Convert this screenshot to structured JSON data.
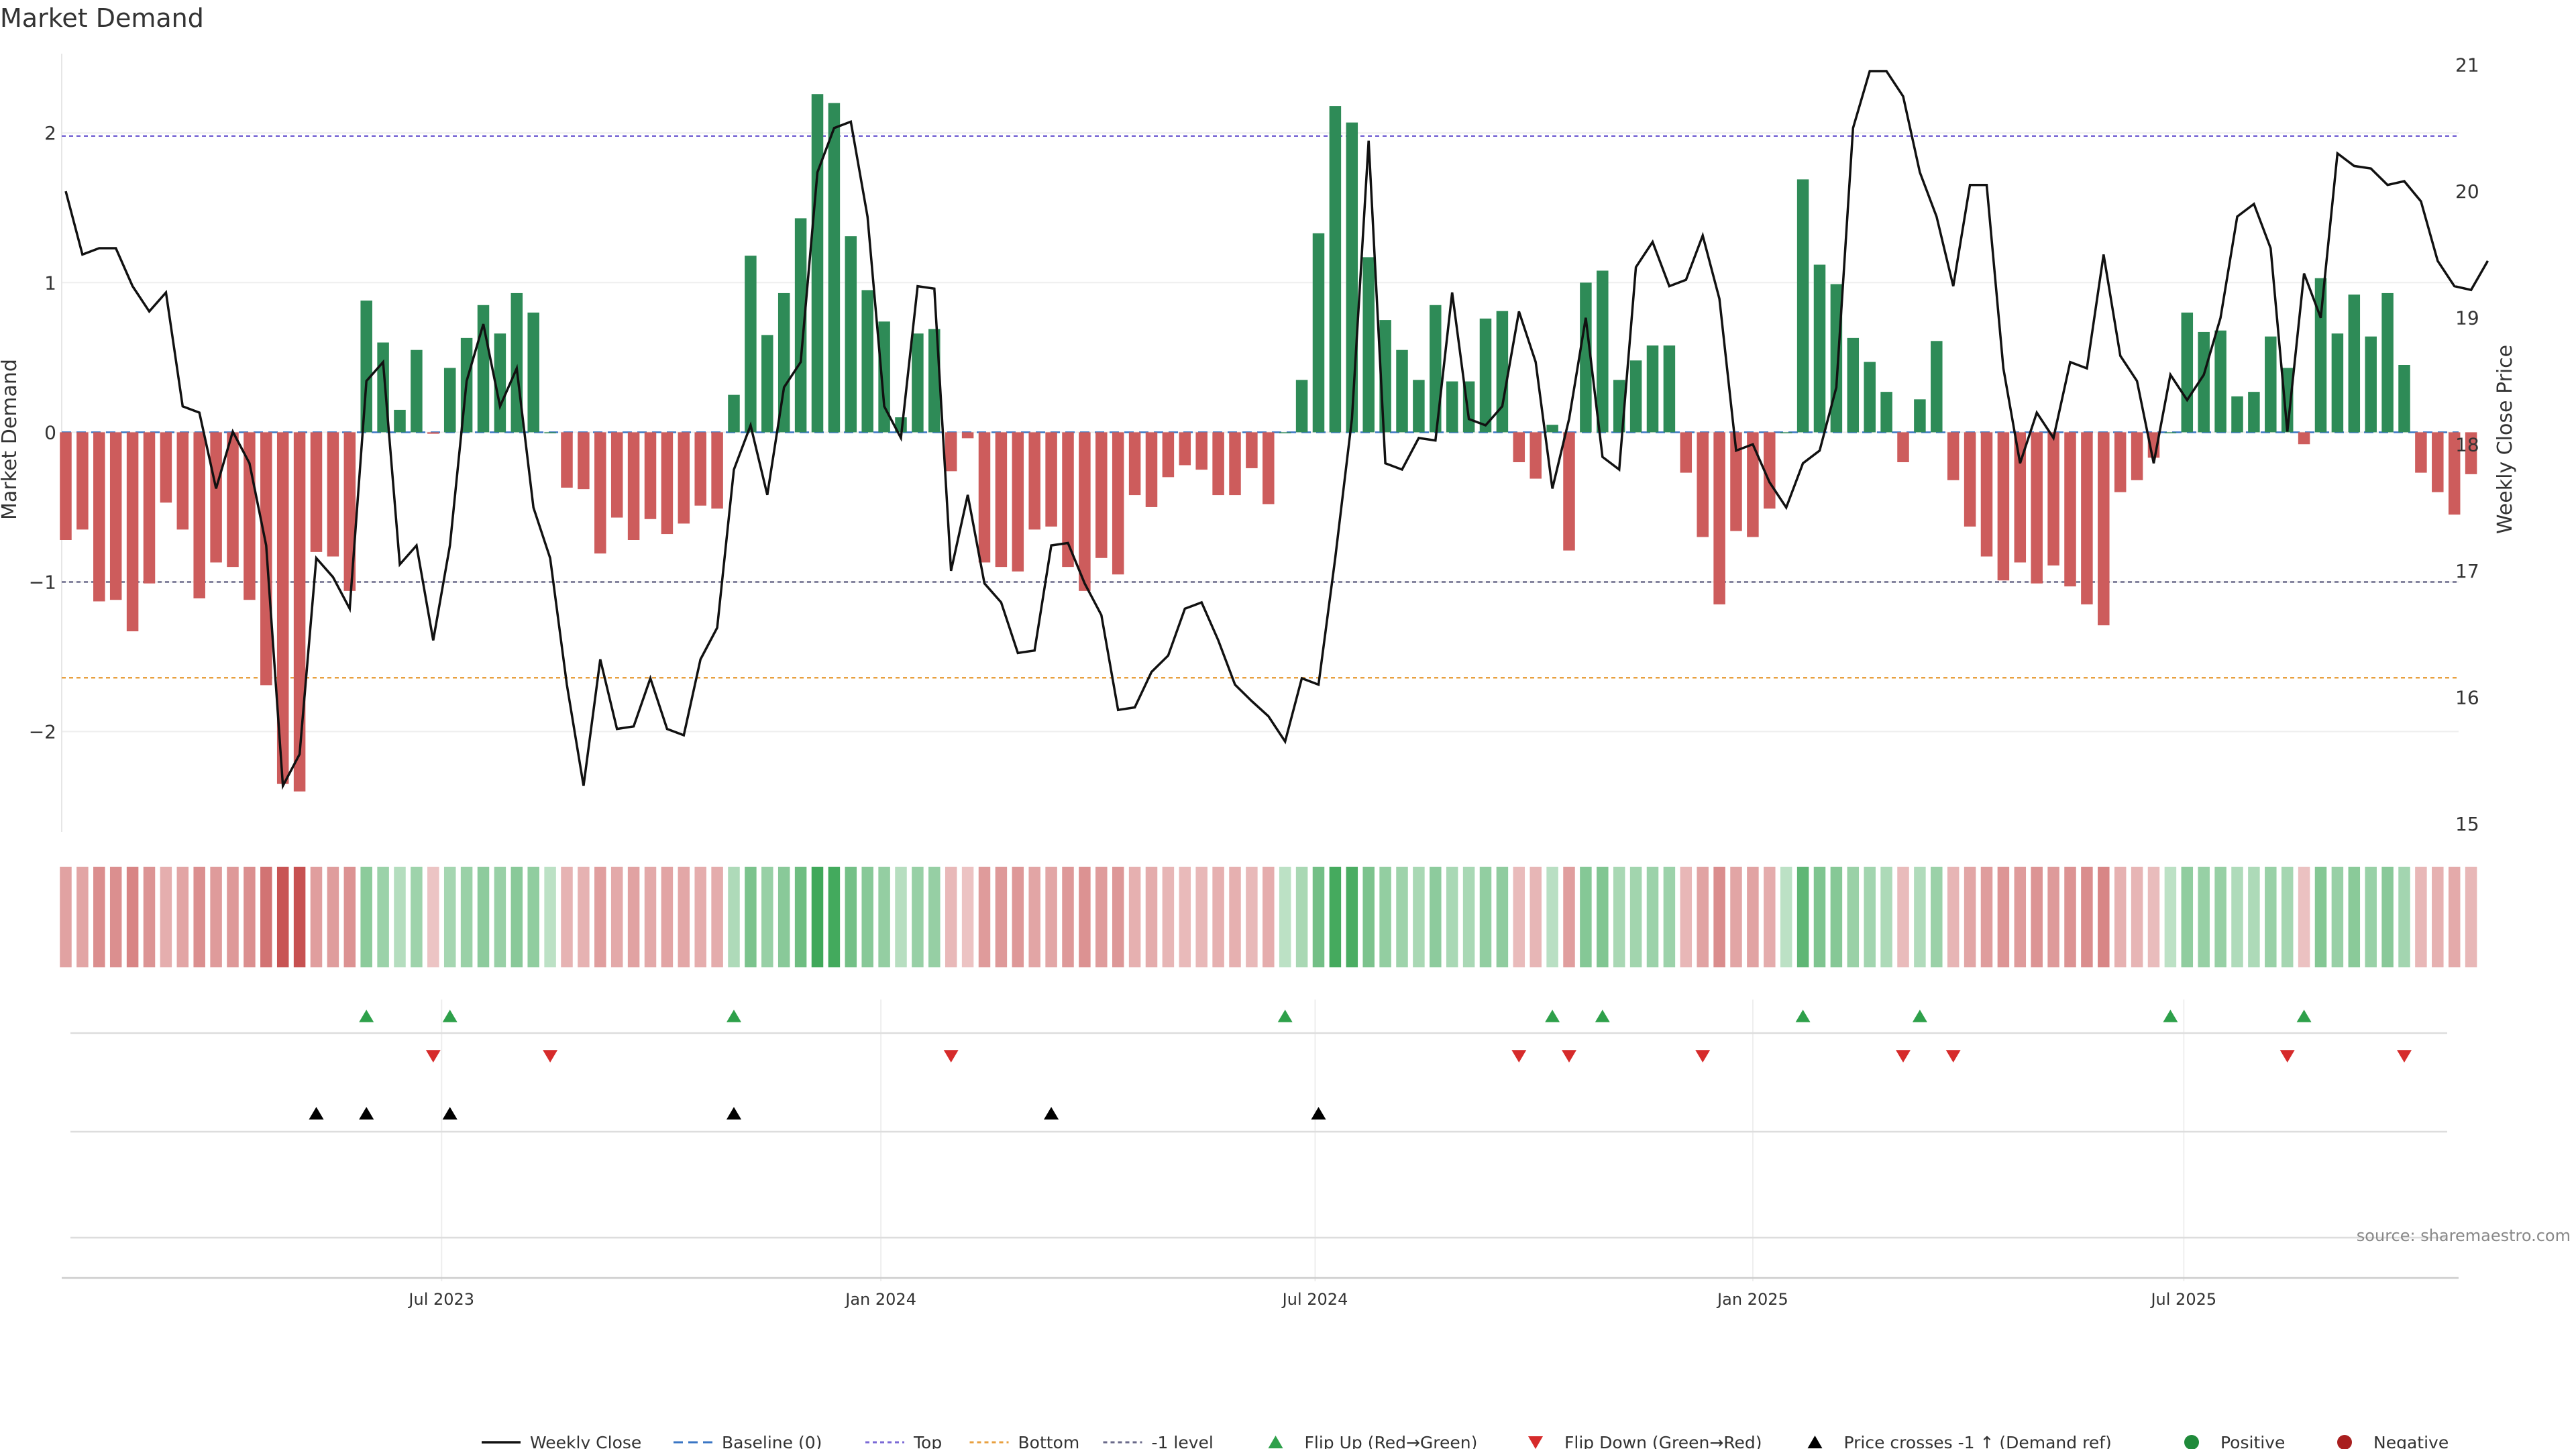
{
  "chart_data": {
    "type": "bar",
    "title": "Market Demand",
    "ylabel": "Market Demand",
    "y2label": "Weekly Close Price",
    "ylim": [
      -2.67,
      2.53
    ],
    "y_ticks": [
      -2,
      -1,
      0,
      1,
      2
    ],
    "y_tick_labels": [
      "−2",
      "−1",
      "0",
      "1",
      "2"
    ],
    "y2lim": [
      15,
      21.3
    ],
    "y2_ticks": [
      15,
      16,
      17,
      18,
      19,
      20,
      21
    ],
    "y2_tick_labels": [
      "15",
      "16",
      "17",
      "18",
      "19",
      "20",
      "21"
    ],
    "x_tick_labels": [
      "Jul 2023",
      "Jan 2024",
      "Jul 2024",
      "Jan 2025",
      "Jul 2025"
    ],
    "x_tick_weeks": [
      22.5,
      48.8,
      74.8,
      101.0,
      126.8
    ],
    "reference_lines": [
      {
        "name": "Top",
        "value": 1.98,
        "color": "#7b6ad6"
      },
      {
        "name": "Bottom",
        "value": -1.64,
        "color": "#e8a040"
      },
      {
        "name": "-1 level",
        "value": -1.0,
        "color": "#6a6a8a"
      },
      {
        "name": "Baseline (0)",
        "value": 0,
        "color": "#3a76c4"
      }
    ],
    "demand": [
      -0.72,
      -0.65,
      -1.13,
      -1.12,
      -1.33,
      -1.01,
      -0.47,
      -0.65,
      -1.11,
      -0.87,
      -0.9,
      -1.12,
      -1.69,
      -2.35,
      -2.4,
      -0.8,
      -0.83,
      -1.06,
      0.88,
      0.6,
      0.15,
      0.55,
      -0.01,
      0.43,
      0.63,
      0.85,
      0.66,
      0.93,
      0.8,
      0.0,
      -0.37,
      -0.38,
      -0.81,
      -0.57,
      -0.72,
      -0.58,
      -0.68,
      -0.61,
      -0.49,
      -0.51,
      0.25,
      1.18,
      0.65,
      0.93,
      1.43,
      2.26,
      2.2,
      1.31,
      0.95,
      0.74,
      0.1,
      0.66,
      0.69,
      -0.26,
      -0.04,
      -0.87,
      -0.9,
      -0.93,
      -0.65,
      -0.63,
      -0.9,
      -1.06,
      -0.84,
      -0.95,
      -0.42,
      -0.5,
      -0.3,
      -0.22,
      -0.25,
      -0.42,
      -0.42,
      -0.24,
      -0.48,
      0.0,
      0.35,
      1.33,
      2.18,
      2.07,
      1.17,
      0.75,
      0.55,
      0.35,
      0.85,
      0.34,
      0.34,
      0.76,
      0.81,
      -0.2,
      -0.31,
      0.05,
      -0.79,
      1.0,
      1.08,
      0.35,
      0.48,
      0.58,
      0.58,
      -0.27,
      -0.7,
      -1.15,
      -0.66,
      -0.7,
      -0.51,
      0.0,
      1.69,
      1.12,
      0.99,
      0.63,
      0.47,
      0.27,
      -0.2,
      0.22,
      0.61,
      -0.32,
      -0.63,
      -0.83,
      -0.99,
      -0.87,
      -1.01,
      -0.89,
      -1.03,
      -1.15,
      -1.29,
      -0.4,
      -0.32,
      -0.17,
      0.0,
      0.8,
      0.67,
      0.68,
      0.24,
      0.27,
      0.64,
      0.43,
      -0.08,
      1.03,
      0.66,
      0.92,
      0.64,
      0.93,
      0.45,
      -0.27,
      -0.4,
      -0.55,
      -0.28
    ],
    "weekly_close": [
      20.0,
      19.5,
      19.55,
      19.55,
      19.25,
      19.05,
      19.2,
      18.3,
      18.25,
      17.65,
      18.1,
      17.85,
      17.2,
      15.3,
      15.55,
      17.1,
      16.95,
      16.7,
      18.5,
      18.65,
      17.05,
      17.2,
      16.45,
      17.2,
      18.5,
      18.95,
      18.3,
      18.6,
      17.5,
      17.1,
      16.1,
      15.3,
      16.3,
      15.75,
      15.77,
      16.15,
      15.75,
      15.7,
      16.3,
      16.55,
      17.8,
      18.15,
      17.6,
      18.45,
      18.65,
      20.15,
      20.5,
      20.55,
      19.8,
      18.3,
      18.05,
      19.25,
      19.23,
      17.0,
      17.6,
      16.9,
      16.75,
      16.35,
      16.37,
      17.2,
      17.22,
      16.9,
      16.65,
      15.9,
      15.92,
      16.2,
      16.33,
      16.7,
      16.75,
      16.45,
      16.1,
      15.97,
      15.85,
      15.65,
      16.15,
      16.1,
      17.1,
      18.2,
      20.4,
      17.85,
      17.8,
      18.05,
      18.03,
      19.2,
      18.2,
      18.15,
      18.3,
      19.05,
      18.65,
      17.65,
      18.2,
      19.0,
      17.9,
      17.8,
      19.4,
      19.6,
      19.25,
      19.3,
      19.65,
      19.15,
      17.95,
      18.0,
      17.7,
      17.5,
      17.85,
      17.95,
      18.45,
      20.5,
      20.95,
      20.95,
      20.75,
      20.15,
      19.8,
      19.25,
      20.05,
      20.05,
      18.6,
      17.85,
      18.25,
      18.05,
      18.65,
      18.6,
      19.5,
      18.7,
      18.5,
      17.85,
      18.55,
      18.35,
      18.55,
      19.0,
      19.8,
      19.9,
      19.55,
      18.1,
      19.35,
      19.0,
      20.3,
      20.2,
      20.18,
      20.05,
      20.08,
      19.92,
      19.45,
      19.25,
      19.22,
      19.45
    ],
    "flip_up_weeks": [
      18,
      23,
      40,
      73,
      89,
      92,
      104,
      111,
      126,
      134
    ],
    "flip_down_weeks": [
      22,
      29,
      53,
      87,
      90,
      98,
      110,
      113,
      133,
      140
    ],
    "cross_weeks": [
      15,
      18,
      23,
      40,
      59,
      75
    ],
    "source": "source: sharemaestro.com",
    "legend": [
      {
        "label": "Weekly Close",
        "color": "#111111",
        "style": "line"
      },
      {
        "label": "Baseline (0)",
        "color": "#3a76c4",
        "style": "dash"
      },
      {
        "label": "Top",
        "color": "#7b6ad6",
        "style": "dot"
      },
      {
        "label": "Bottom",
        "color": "#e8a040",
        "style": "dot"
      },
      {
        "label": "-1 level",
        "color": "#6a6a8a",
        "style": "dot"
      },
      {
        "label": "Flip Up (Red→Green)",
        "color": "#2ea04a",
        "style": "tri-up"
      },
      {
        "label": "Flip Down (Green→Red)",
        "color": "#d62b2b",
        "style": "tri-down"
      },
      {
        "label": "Price crosses -1 ↑ (Demand ref)",
        "color": "#000000",
        "style": "tri-up"
      },
      {
        "label": "Positive",
        "color": "#1f8a3a",
        "style": "dot-marker"
      },
      {
        "label": "Negative",
        "color": "#a91f1f",
        "style": "dot-marker"
      }
    ],
    "colors": {
      "positive": "#2e8b57",
      "negative": "#cd5c5c"
    }
  }
}
